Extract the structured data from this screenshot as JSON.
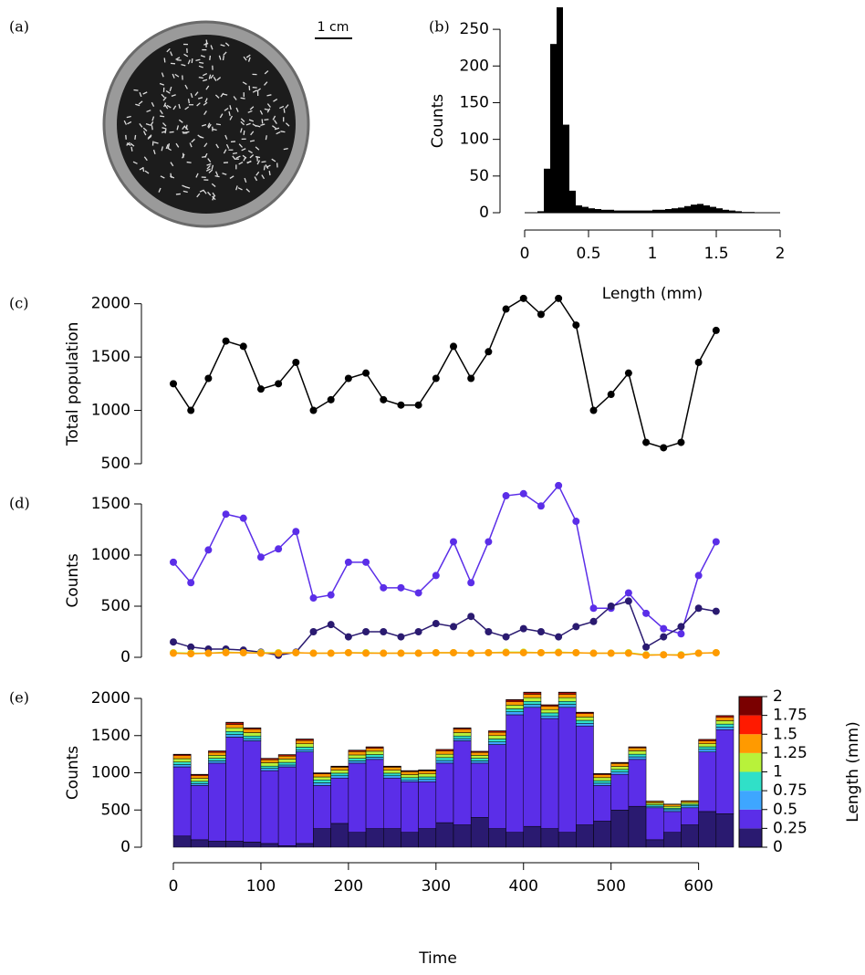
{
  "photo": {
    "label": "(a)",
    "scale_bar": "1 cm"
  },
  "chart_data": [
    {
      "type": "histogram",
      "label": "(b)",
      "xlabel": "Length (mm)",
      "ylabel": "Counts",
      "color": "#000000",
      "bins": [
        0,
        0.05,
        0.1,
        0.15,
        0.2,
        0.25,
        0.3,
        0.35,
        0.4,
        0.45,
        0.5,
        0.55,
        0.6,
        0.65,
        0.7,
        0.75,
        0.8,
        0.85,
        0.9,
        0.95,
        1,
        1.05,
        1.1,
        1.15,
        1.2,
        1.25,
        1.3,
        1.35,
        1.4,
        1.45,
        1.5,
        1.55,
        1.6,
        1.65,
        1.7,
        1.75,
        1.8,
        1.85,
        1.9,
        1.95,
        2
      ],
      "values": [
        0,
        0,
        2,
        60,
        230,
        280,
        120,
        30,
        10,
        8,
        6,
        5,
        4,
        4,
        3,
        3,
        3,
        3,
        3,
        3,
        4,
        4,
        5,
        6,
        7,
        9,
        11,
        12,
        10,
        8,
        6,
        4,
        3,
        2,
        1,
        1,
        0,
        0,
        0,
        0
      ],
      "xlim": [
        0,
        2
      ],
      "xticks": [
        0,
        0.5,
        1,
        1.5,
        2
      ],
      "ylim": [
        0,
        280
      ],
      "yticks": [
        0,
        50,
        100,
        150,
        200,
        250
      ]
    },
    {
      "type": "line",
      "label": "(c)",
      "ylabel": "Total population",
      "x": [
        0,
        20,
        40,
        60,
        80,
        100,
        120,
        140,
        160,
        180,
        200,
        220,
        240,
        260,
        280,
        300,
        320,
        340,
        360,
        380,
        400,
        420,
        440,
        460,
        480,
        500,
        520,
        540,
        560,
        580,
        600,
        620
      ],
      "series": [
        {
          "color": "#000000",
          "values": [
            1250,
            1000,
            1300,
            1650,
            1600,
            1200,
            1250,
            1450,
            1000,
            1100,
            1300,
            1350,
            1100,
            1050,
            1050,
            1300,
            1600,
            1300,
            1550,
            1950,
            2050,
            1900,
            2050,
            1800,
            1000,
            1150,
            1350,
            700,
            650,
            700,
            1450,
            1750
          ]
        }
      ],
      "xlim": [
        0,
        640
      ],
      "ylim": [
        320,
        2160
      ],
      "yticks": [
        500,
        1000,
        1500,
        2000
      ]
    },
    {
      "type": "line",
      "label": "(d)",
      "ylabel": "Counts",
      "x": [
        0,
        20,
        40,
        60,
        80,
        100,
        120,
        140,
        160,
        180,
        200,
        220,
        240,
        260,
        280,
        300,
        320,
        340,
        360,
        380,
        400,
        420,
        440,
        460,
        480,
        500,
        520,
        540,
        560,
        580,
        600,
        620
      ],
      "series": [
        {
          "color": "#5b2ee8",
          "values": [
            930,
            730,
            1050,
            1400,
            1360,
            980,
            1060,
            1230,
            580,
            610,
            930,
            930,
            680,
            680,
            630,
            800,
            1130,
            730,
            1130,
            1580,
            1600,
            1480,
            1680,
            1330,
            480,
            480,
            630,
            430,
            280,
            230,
            800,
            1130
          ]
        },
        {
          "color": "#2a1a70",
          "values": [
            150,
            100,
            80,
            80,
            70,
            50,
            20,
            50,
            250,
            320,
            200,
            250,
            250,
            200,
            250,
            330,
            300,
            400,
            250,
            200,
            280,
            250,
            200,
            300,
            350,
            500,
            550,
            100,
            200,
            300,
            480,
            450
          ]
        },
        {
          "color": "#b8f23a",
          "values": [
            45,
            40,
            40,
            50,
            45,
            45,
            45,
            45,
            40,
            40,
            45,
            45,
            40,
            40,
            40,
            45,
            45,
            40,
            45,
            50,
            50,
            45,
            50,
            45,
            40,
            40,
            45,
            25,
            25,
            25,
            40,
            45
          ]
        },
        {
          "color": "#ff9a00",
          "values": [
            40,
            35,
            40,
            45,
            45,
            40,
            40,
            45,
            40,
            40,
            45,
            40,
            40,
            40,
            40,
            45,
            45,
            40,
            45,
            45,
            45,
            45,
            45,
            45,
            40,
            40,
            40,
            20,
            25,
            20,
            40,
            45
          ]
        }
      ],
      "xlim": [
        0,
        640
      ],
      "ylim": [
        -50,
        1750
      ],
      "yticks": [
        0,
        500,
        1000,
        1500
      ]
    },
    {
      "type": "stacked_bar",
      "label": "(e)",
      "ylabel": "Counts",
      "xlabel": "Time",
      "bar_width": 20,
      "x": [
        0,
        20,
        40,
        60,
        80,
        100,
        120,
        140,
        160,
        180,
        200,
        220,
        240,
        260,
        280,
        300,
        320,
        340,
        360,
        380,
        400,
        420,
        440,
        460,
        480,
        500,
        520,
        540,
        560,
        580,
        600,
        620
      ],
      "series": [
        {
          "color": "#2a1a70",
          "values": [
            150,
            100,
            80,
            80,
            70,
            50,
            20,
            50,
            250,
            320,
            200,
            250,
            250,
            200,
            250,
            330,
            300,
            400,
            250,
            200,
            280,
            250,
            200,
            300,
            350,
            500,
            550,
            100,
            200,
            300,
            480,
            450
          ]
        },
        {
          "color": "#5b2ee8",
          "values": [
            930,
            730,
            1050,
            1400,
            1360,
            980,
            1060,
            1230,
            580,
            610,
            930,
            930,
            680,
            680,
            630,
            800,
            1130,
            730,
            1130,
            1580,
            1600,
            1480,
            1680,
            1330,
            480,
            480,
            630,
            430,
            280,
            230,
            800,
            1130
          ]
        },
        {
          "color": "#3ea6ff",
          "values": [
            30,
            25,
            30,
            35,
            30,
            30,
            25,
            30,
            35,
            30,
            30,
            30,
            30,
            25,
            30,
            35,
            30,
            30,
            35,
            40,
            40,
            35,
            40,
            35,
            30,
            30,
            35,
            20,
            25,
            25,
            35,
            35
          ]
        },
        {
          "color": "#30e0c8",
          "values": [
            35,
            30,
            35,
            40,
            35,
            30,
            35,
            35,
            40,
            35,
            35,
            35,
            35,
            30,
            35,
            40,
            35,
            35,
            40,
            40,
            40,
            40,
            40,
            40,
            35,
            35,
            35,
            20,
            20,
            20,
            35,
            40
          ]
        },
        {
          "color": "#b8f23a",
          "values": [
            45,
            40,
            40,
            50,
            45,
            45,
            45,
            45,
            40,
            40,
            45,
            45,
            40,
            40,
            40,
            45,
            45,
            40,
            45,
            50,
            50,
            45,
            50,
            45,
            40,
            40,
            45,
            25,
            25,
            25,
            40,
            45
          ]
        },
        {
          "color": "#ff9a00",
          "values": [
            40,
            35,
            40,
            45,
            45,
            40,
            40,
            45,
            40,
            40,
            45,
            40,
            40,
            40,
            40,
            45,
            45,
            40,
            45,
            45,
            45,
            45,
            45,
            45,
            40,
            40,
            40,
            20,
            25,
            20,
            40,
            45
          ]
        },
        {
          "color": "#ff1a00",
          "values": [
            15,
            15,
            15,
            20,
            15,
            15,
            15,
            15,
            10,
            10,
            15,
            15,
            10,
            10,
            10,
            15,
            15,
            10,
            15,
            20,
            20,
            15,
            20,
            15,
            10,
            10,
            10,
            5,
            5,
            5,
            15,
            20
          ]
        },
        {
          "color": "#7a0000",
          "values": [
            5,
            5,
            5,
            10,
            5,
            5,
            5,
            5,
            5,
            5,
            5,
            5,
            5,
            5,
            5,
            5,
            5,
            5,
            5,
            10,
            10,
            5,
            10,
            5,
            5,
            5,
            5,
            0,
            0,
            0,
            5,
            5
          ]
        }
      ],
      "xlim": [
        0,
        640
      ],
      "xticks": [
        0,
        100,
        200,
        300,
        400,
        500,
        600
      ],
      "ylim": [
        0,
        2150
      ],
      "yticks": [
        0,
        500,
        1000,
        1500,
        2000
      ],
      "colorbar_label": "Length (mm)",
      "zlim": [
        0,
        2
      ],
      "zticks": [
        0,
        0.25,
        0.5,
        0.75,
        1,
        1.25,
        1.5,
        1.75,
        2
      ]
    }
  ]
}
